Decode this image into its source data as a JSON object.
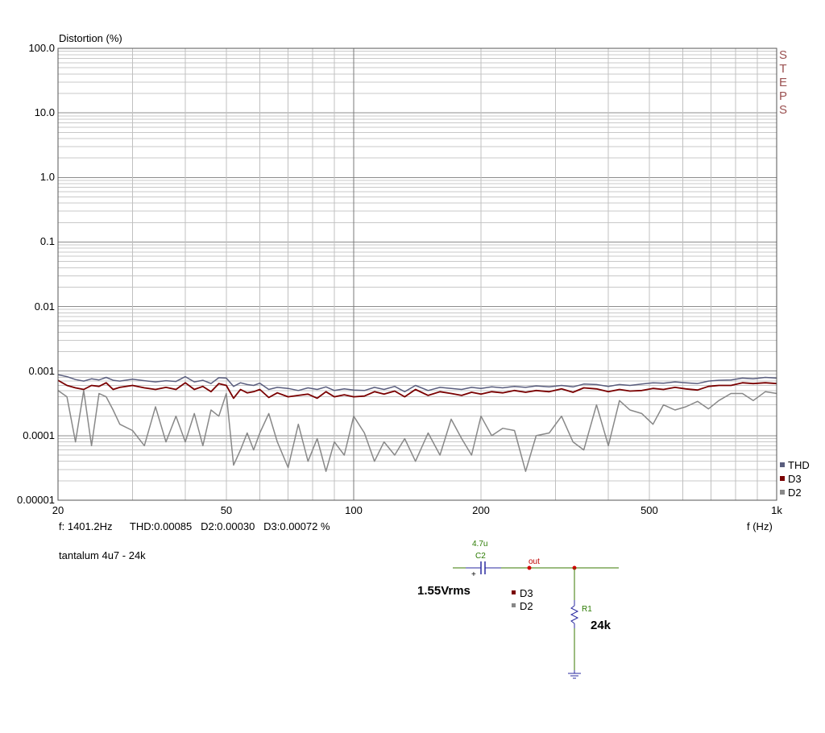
{
  "chart_data": {
    "type": "line",
    "ylabel": "Distortion (%)",
    "xlabel": "f (Hz)",
    "x_scale": "log",
    "y_scale": "log",
    "xlim": [
      20,
      1000
    ],
    "ylim": [
      1e-05,
      100
    ],
    "x_ticks": [
      20,
      50,
      100,
      200,
      500,
      1000
    ],
    "x_tick_labels": [
      "20",
      "50",
      "100",
      "200",
      "500",
      "1k"
    ],
    "y_ticks": [
      1e-05,
      0.0001,
      0.001,
      0.01,
      0.1,
      1,
      10,
      100
    ],
    "y_tick_labels": [
      "0.00001",
      "0.0001",
      "0.001",
      "0.01",
      "0.1",
      "1.0",
      "10.0",
      "100.0"
    ],
    "grid": true,
    "legend_position": "right-bottom",
    "series": [
      {
        "name": "THD",
        "color": "#5a5e7e",
        "x": [
          20,
          21,
          22,
          23,
          24,
          25,
          26,
          27,
          28,
          30,
          32,
          34,
          36,
          38,
          40,
          42,
          44,
          46,
          48,
          50,
          52,
          54,
          56,
          58,
          60,
          63,
          66,
          70,
          74,
          78,
          82,
          86,
          90,
          95,
          100,
          106,
          112,
          118,
          125,
          132,
          140,
          150,
          160,
          170,
          180,
          190,
          200,
          212,
          225,
          240,
          255,
          270,
          290,
          310,
          330,
          350,
          375,
          400,
          425,
          450,
          480,
          510,
          540,
          575,
          610,
          650,
          690,
          730,
          780,
          830,
          880,
          940,
          1000
        ],
        "y": [
          0.00088,
          0.00082,
          0.00074,
          0.0007,
          0.00076,
          0.00073,
          0.0008,
          0.00072,
          0.0007,
          0.00075,
          0.00071,
          0.00068,
          0.00071,
          0.00069,
          0.00082,
          0.00068,
          0.00072,
          0.00064,
          0.00079,
          0.00078,
          0.00058,
          0.00066,
          0.00062,
          0.0006,
          0.00065,
          0.00052,
          0.00056,
          0.00054,
          0.0005,
          0.00055,
          0.00052,
          0.00057,
          0.0005,
          0.00053,
          0.00051,
          0.0005,
          0.00056,
          0.00052,
          0.00058,
          0.00048,
          0.0006,
          0.0005,
          0.00056,
          0.00054,
          0.00052,
          0.00056,
          0.00054,
          0.00057,
          0.00055,
          0.00058,
          0.00056,
          0.00059,
          0.00057,
          0.0006,
          0.00057,
          0.00063,
          0.00062,
          0.00058,
          0.00062,
          0.0006,
          0.00063,
          0.00066,
          0.00065,
          0.00068,
          0.00066,
          0.00064,
          0.0007,
          0.00072,
          0.00073,
          0.00078,
          0.00076,
          0.0008,
          0.00078
        ]
      },
      {
        "name": "D3",
        "color": "#7a0000",
        "x": [
          20,
          21,
          22,
          23,
          24,
          25,
          26,
          27,
          28,
          30,
          32,
          34,
          36,
          38,
          40,
          42,
          44,
          46,
          48,
          50,
          52,
          54,
          56,
          58,
          60,
          63,
          66,
          70,
          74,
          78,
          82,
          86,
          90,
          95,
          100,
          106,
          112,
          118,
          125,
          132,
          140,
          150,
          160,
          170,
          180,
          190,
          200,
          212,
          225,
          240,
          255,
          270,
          290,
          310,
          330,
          350,
          375,
          400,
          425,
          450,
          480,
          510,
          540,
          575,
          610,
          650,
          690,
          730,
          780,
          830,
          880,
          940,
          1000
        ],
        "y": [
          0.00072,
          0.0006,
          0.00055,
          0.00052,
          0.0006,
          0.00058,
          0.00066,
          0.00052,
          0.00056,
          0.0006,
          0.00055,
          0.00052,
          0.00056,
          0.00052,
          0.00066,
          0.00052,
          0.00058,
          0.00048,
          0.00064,
          0.0006,
          0.00038,
          0.00052,
          0.00046,
          0.00048,
          0.00052,
          0.00039,
          0.00046,
          0.0004,
          0.00042,
          0.00044,
          0.00038,
          0.00048,
          0.0004,
          0.00043,
          0.0004,
          0.00041,
          0.00048,
          0.00044,
          0.00049,
          0.0004,
          0.00052,
          0.00042,
          0.00048,
          0.00045,
          0.00042,
          0.00047,
          0.00044,
          0.00048,
          0.00046,
          0.0005,
          0.00047,
          0.0005,
          0.00048,
          0.00053,
          0.00047,
          0.00055,
          0.00053,
          0.00048,
          0.00052,
          0.00049,
          0.0005,
          0.00054,
          0.00052,
          0.00056,
          0.00053,
          0.00051,
          0.00058,
          0.0006,
          0.0006,
          0.00066,
          0.00064,
          0.00066,
          0.00064
        ]
      },
      {
        "name": "D2",
        "color": "#888888",
        "x": [
          20,
          21,
          22,
          23,
          24,
          25,
          26,
          27,
          28,
          30,
          32,
          34,
          36,
          38,
          40,
          42,
          44,
          46,
          48,
          50,
          52,
          54,
          56,
          58,
          60,
          63,
          66,
          70,
          74,
          78,
          82,
          86,
          90,
          95,
          100,
          106,
          112,
          118,
          125,
          132,
          140,
          150,
          160,
          170,
          180,
          190,
          200,
          212,
          225,
          240,
          255,
          270,
          290,
          310,
          330,
          350,
          375,
          400,
          425,
          450,
          480,
          510,
          540,
          575,
          610,
          650,
          690,
          730,
          780,
          830,
          880,
          940,
          1000
        ],
        "y": [
          0.0005,
          0.0004,
          8e-05,
          0.0005,
          7e-05,
          0.00045,
          0.0004,
          0.00025,
          0.00015,
          0.00012,
          7e-05,
          0.00028,
          8e-05,
          0.0002,
          8e-05,
          0.00022,
          7e-05,
          0.00025,
          0.0002,
          0.00045,
          3.5e-05,
          6e-05,
          0.00011,
          6e-05,
          0.00011,
          0.00022,
          8e-05,
          3.2e-05,
          0.00015,
          4e-05,
          9e-05,
          2.8e-05,
          8e-05,
          5e-05,
          0.0002,
          0.00011,
          4e-05,
          8e-05,
          5e-05,
          9e-05,
          4e-05,
          0.00011,
          5e-05,
          0.00018,
          9e-05,
          5e-05,
          0.0002,
          0.0001,
          0.00013,
          0.00012,
          2.8e-05,
          0.0001,
          0.00011,
          0.0002,
          8e-05,
          6e-05,
          0.0003,
          7e-05,
          0.00035,
          0.00025,
          0.00022,
          0.00015,
          0.0003,
          0.00025,
          0.00028,
          0.00034,
          0.00026,
          0.00035,
          0.00045,
          0.00045,
          0.00035,
          0.00048,
          0.00045
        ]
      }
    ],
    "annotations": {
      "readout": "f: 1401.2Hz      THD:0.00085   D2:0.00030   D3:0.00072 %",
      "watermark": [
        "S",
        "T",
        "E",
        "P",
        "S"
      ]
    }
  },
  "caption": "tantalum 4u7 - 24k",
  "circuit": {
    "cap_value": "4.7u",
    "cap_name": "C2",
    "plus_sign": "+",
    "node_label": "out",
    "source_label": "1.55Vrms",
    "res_name": "R1",
    "res_value": "24k",
    "legend": [
      "D3",
      "D2"
    ]
  }
}
